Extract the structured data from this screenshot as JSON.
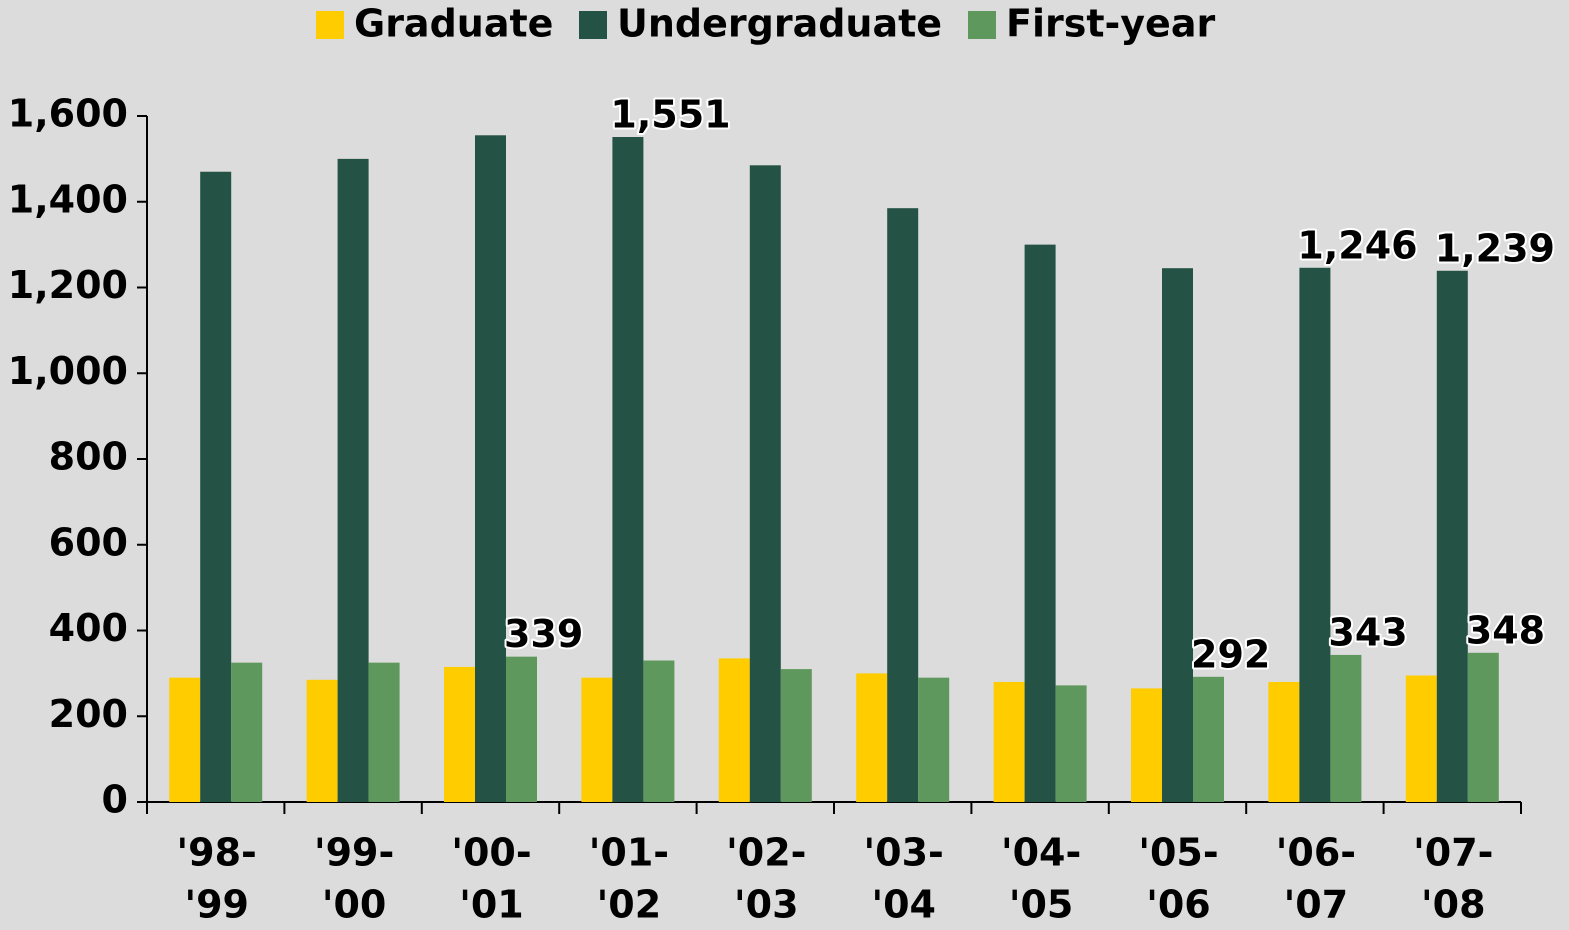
{
  "chart_data": {
    "type": "bar",
    "categories": [
      [
        "'98-",
        "'99"
      ],
      [
        "'99-",
        "'00"
      ],
      [
        "'00-",
        "'01"
      ],
      [
        "'01-",
        "'02"
      ],
      [
        "'02-",
        "'03"
      ],
      [
        "'03-",
        "'04"
      ],
      [
        "'04-",
        "'05"
      ],
      [
        "'05-",
        "'06"
      ],
      [
        "'06-",
        "'07"
      ],
      [
        "'07-",
        "'08"
      ]
    ],
    "series": [
      {
        "name": "Graduate",
        "color": "#ffcc00",
        "values": [
          290,
          285,
          315,
          290,
          335,
          300,
          280,
          265,
          280,
          295
        ]
      },
      {
        "name": "Undergraduate",
        "color": "#245244",
        "values": [
          1470,
          1500,
          1555,
          1551,
          1485,
          1385,
          1300,
          1245,
          1246,
          1239
        ],
        "value_labels": [
          null,
          null,
          null,
          "1,551",
          null,
          null,
          null,
          null,
          "1,246",
          "1,239"
        ]
      },
      {
        "name": "First-year",
        "color": "#5f985c",
        "values": [
          325,
          325,
          339,
          330,
          310,
          290,
          272,
          292,
          343,
          348
        ],
        "value_labels": [
          null,
          null,
          "339",
          null,
          null,
          null,
          null,
          "292",
          "343",
          "348"
        ]
      }
    ],
    "ylim": [
      0,
      1600
    ],
    "yticks": [
      0,
      200,
      400,
      600,
      800,
      {
        "value": 1000,
        "label": "1,000"
      },
      {
        "value": 1200,
        "label": "1,200"
      },
      {
        "value": 1400,
        "label": "1,400"
      },
      {
        "value": 1600,
        "label": "1,600"
      }
    ],
    "grid": false,
    "legend": "top"
  }
}
